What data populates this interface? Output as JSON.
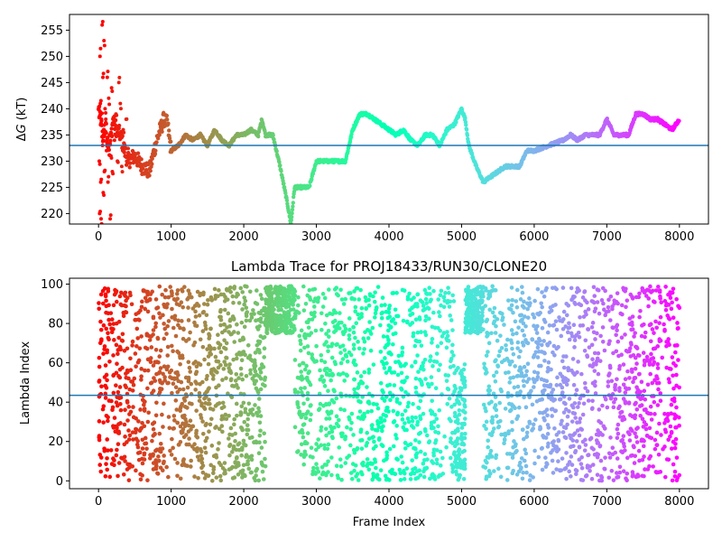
{
  "chart_data": [
    {
      "type": "scatter",
      "title": "",
      "xlabel": "",
      "ylabel_prefix": "Δ",
      "ylabel_symbol": "G",
      "ylabel_suffix": " (kT)",
      "xlim": [
        -400,
        8400
      ],
      "ylim": [
        218,
        258
      ],
      "x_ticks": [
        0,
        1000,
        2000,
        3000,
        4000,
        5000,
        6000,
        7000,
        8000
      ],
      "y_ticks": [
        220,
        225,
        230,
        235,
        240,
        245,
        250,
        255
      ],
      "hline": 233.0,
      "hline_color": "#1f77b4",
      "colormap": "rainbow (red at frame 0 to purple at frame 8000)",
      "trace_keypoints": {
        "x": [
          0,
          60,
          100,
          150,
          200,
          250,
          300,
          400,
          500,
          600,
          700,
          800,
          900,
          950,
          1000,
          1100,
          1200,
          1300,
          1400,
          1500,
          1600,
          1700,
          1800,
          1900,
          2000,
          2100,
          2200,
          2250,
          2300,
          2400,
          2500,
          2600,
          2650,
          2700,
          2800,
          2900,
          3000,
          3200,
          3400,
          3500,
          3600,
          3700,
          3800,
          3900,
          4000,
          4100,
          4200,
          4300,
          4400,
          4500,
          4600,
          4700,
          4800,
          4900,
          5000,
          5050,
          5100,
          5200,
          5300,
          5400,
          5500,
          5600,
          5800,
          5900,
          6000,
          6200,
          6400,
          6500,
          6600,
          6700,
          6800,
          6900,
          7000,
          7100,
          7200,
          7300,
          7400,
          7500,
          7600,
          7700,
          7800,
          7900,
          8000
        ],
        "y": [
          240,
          235,
          236,
          232,
          238,
          236,
          235,
          230,
          231,
          229,
          228,
          234,
          238,
          237,
          232,
          233,
          235,
          234,
          235,
          233,
          236,
          234,
          233,
          235,
          235,
          236,
          235,
          238,
          235,
          235,
          229,
          222,
          218,
          225,
          225,
          225,
          230,
          230,
          230,
          236,
          239,
          239,
          238,
          237,
          236,
          235,
          236,
          234,
          233,
          235,
          235,
          233,
          236,
          237,
          240,
          238,
          233,
          229,
          226,
          227,
          228,
          229,
          229,
          232,
          232,
          233,
          234,
          235,
          234,
          235,
          235,
          235,
          238,
          235,
          235,
          235,
          239,
          239,
          238,
          238,
          237,
          236,
          238
        ]
      },
      "early_scatter": {
        "x": [
          5,
          10,
          15,
          20,
          25,
          30,
          35,
          40,
          50,
          55,
          60,
          65,
          70,
          75,
          80,
          90,
          100,
          110,
          120,
          130,
          140,
          150,
          160,
          170,
          180,
          190,
          200,
          220,
          240,
          260,
          280,
          300,
          320,
          340,
          360,
          380,
          400
        ],
        "y": [
          240,
          230,
          220,
          250,
          241,
          226,
          219,
          238,
          256,
          233,
          246,
          224,
          236,
          253,
          228,
          240,
          238,
          232,
          246,
          226,
          242,
          235,
          219,
          231,
          244,
          228,
          237,
          234,
          239,
          230,
          245,
          241,
          229,
          236,
          233,
          238,
          231
        ]
      }
    },
    {
      "type": "scatter",
      "title": "Lambda Trace for PROJ18433/RUN30/CLONE20",
      "xlabel": "Frame Index",
      "ylabel": "Lambda Index",
      "xlim": [
        -400,
        8400
      ],
      "ylim": [
        -4,
        103
      ],
      "x_ticks": [
        0,
        1000,
        2000,
        3000,
        4000,
        5000,
        6000,
        7000,
        8000
      ],
      "y_ticks": [
        0,
        20,
        40,
        60,
        80,
        100
      ],
      "hline": 43.5,
      "hline_color": "#1f77b4",
      "colormap": "rainbow (red at frame 0 to purple at frame 8000)",
      "density_segments": [
        {
          "x0": 0,
          "x1": 2300,
          "lo": 0,
          "hi": 99,
          "density": 1.0
        },
        {
          "x0": 2300,
          "x1": 2700,
          "lo": 75,
          "hi": 99,
          "density": 1.6
        },
        {
          "x0": 2700,
          "x1": 4500,
          "lo": 0,
          "hi": 99,
          "density": 0.9
        },
        {
          "x0": 4500,
          "x1": 4900,
          "lo": 0,
          "hi": 99,
          "density": 0.8
        },
        {
          "x0": 4900,
          "x1": 5050,
          "lo": 0,
          "hi": 60,
          "density": 1.6
        },
        {
          "x0": 5050,
          "x1": 5300,
          "lo": 75,
          "hi": 99,
          "density": 1.8
        },
        {
          "x0": 5300,
          "x1": 8000,
          "lo": 0,
          "hi": 99,
          "density": 0.9
        }
      ]
    }
  ]
}
